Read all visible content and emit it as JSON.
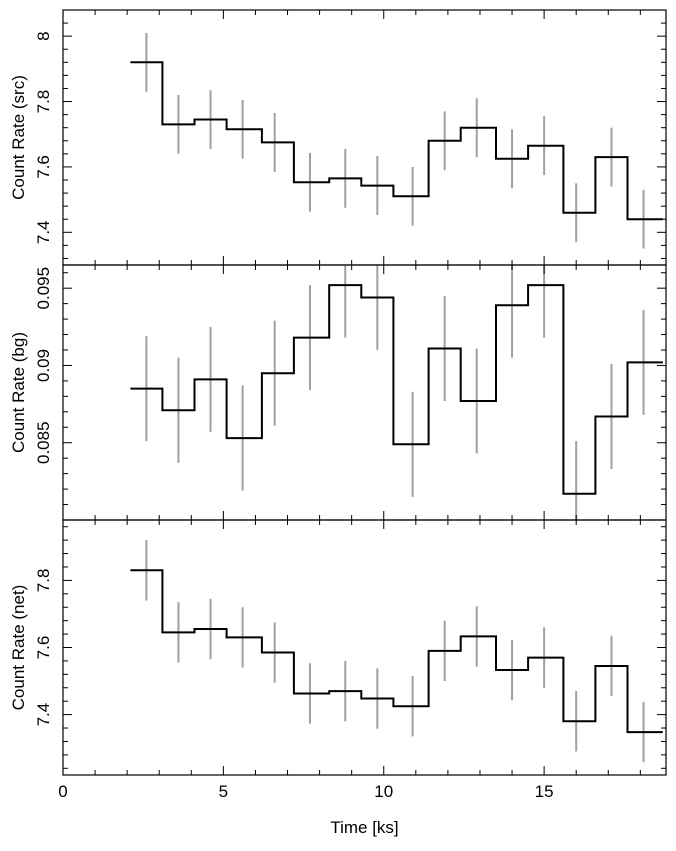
{
  "chart_data": {
    "type": "line",
    "xlabel": "Time [ks]",
    "xlim": [
      0,
      18.8
    ],
    "xticks": [
      0,
      5,
      10,
      15
    ],
    "xtick_labels": [
      "0",
      "5",
      "10",
      "15"
    ],
    "x": [
      2.6,
      3.6,
      4.6,
      5.6,
      6.6,
      7.7,
      8.8,
      9.8,
      10.9,
      11.9,
      12.9,
      14.0,
      15.0,
      16.0,
      17.1,
      18.1
    ],
    "bin_edges": [
      2.1,
      3.1,
      4.1,
      5.1,
      6.2,
      7.2,
      8.3,
      9.3,
      10.3,
      11.4,
      12.4,
      13.5,
      14.5,
      15.6,
      16.6,
      17.6,
      18.7
    ],
    "panels": [
      {
        "ylabel": "Count Rate (src)",
        "ylim": [
          7.3,
          8.08
        ],
        "yticks": [
          7.4,
          7.6,
          7.8,
          8.0
        ],
        "ytick_labels": [
          "7.4",
          "7.6",
          "7.8",
          "8"
        ],
        "y": [
          7.92,
          7.73,
          7.745,
          7.715,
          7.675,
          7.553,
          7.565,
          7.543,
          7.51,
          7.68,
          7.72,
          7.625,
          7.665,
          7.46,
          7.63,
          7.44
        ],
        "yerr": [
          0.09,
          0.09,
          0.09,
          0.09,
          0.09,
          0.09,
          0.09,
          0.09,
          0.09,
          0.09,
          0.09,
          0.09,
          0.09,
          0.09,
          0.09,
          0.09
        ]
      },
      {
        "ylabel": "Count Rate (bg)",
        "ylim": [
          0.08,
          0.0965
        ],
        "yticks": [
          0.085,
          0.09,
          0.095
        ],
        "ytick_labels": [
          "0.085",
          "0.09",
          "0.095"
        ],
        "y": [
          0.0885,
          0.0871,
          0.0891,
          0.0853,
          0.0895,
          0.0918,
          0.0952,
          0.0944,
          0.0849,
          0.0911,
          0.0877,
          0.0939,
          0.0952,
          0.0817,
          0.0867,
          0.0902
        ],
        "yerr": [
          0.0034,
          0.0034,
          0.0034,
          0.0034,
          0.0034,
          0.0034,
          0.0034,
          0.0034,
          0.0034,
          0.0034,
          0.0034,
          0.0034,
          0.0034,
          0.0034,
          0.0034,
          0.0034
        ]
      },
      {
        "ylabel": "Count Rate (net)",
        "ylim": [
          7.22,
          7.98
        ],
        "yticks": [
          7.4,
          7.6,
          7.8
        ],
        "ytick_labels": [
          "7.4",
          "7.6",
          "7.8"
        ],
        "y": [
          7.83,
          7.645,
          7.655,
          7.63,
          7.585,
          7.463,
          7.47,
          7.448,
          7.425,
          7.59,
          7.633,
          7.533,
          7.57,
          7.38,
          7.545,
          7.348
        ],
        "yerr": [
          0.09,
          0.09,
          0.09,
          0.09,
          0.09,
          0.09,
          0.09,
          0.09,
          0.09,
          0.09,
          0.09,
          0.09,
          0.09,
          0.09,
          0.09,
          0.09
        ]
      }
    ],
    "colors": {
      "step": "#000000",
      "errorbar": "#a0a0a0",
      "axes": "#000000"
    },
    "grid": false,
    "legend": "none"
  }
}
